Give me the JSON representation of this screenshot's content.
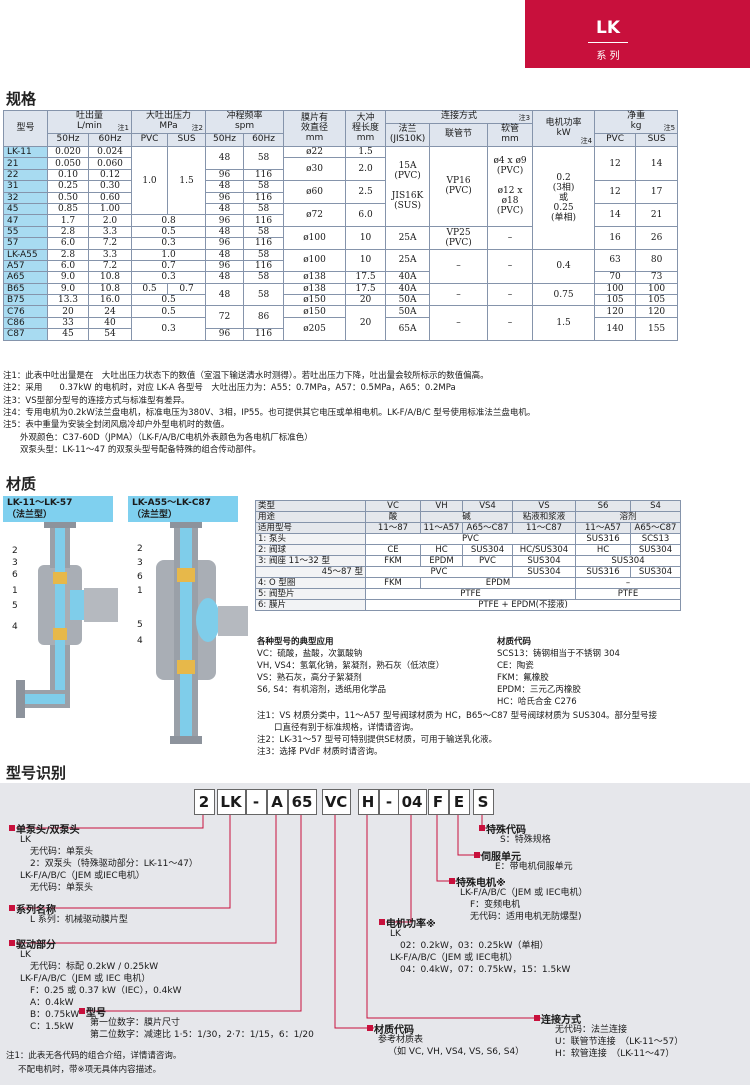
{
  "header": {
    "series_code": "LK",
    "series_label": "系 列"
  },
  "spec": {
    "title": "规格",
    "columns": [
      {
        "label": "型号"
      },
      {
        "label": "吐出量",
        "unit": "L/min",
        "note": "注1"
      },
      {
        "label": "大吐出压力",
        "unit": "MPa",
        "note": "注2"
      },
      {
        "label": "冲程频率",
        "unit": "spm"
      },
      {
        "label": "膜片有\n效直径",
        "unit": "mm"
      },
      {
        "label": "大冲\n程长度",
        "unit": "mm"
      },
      {
        "label": "连接方式",
        "note": "注3"
      },
      {
        "label": "电机功率",
        "unit": "kW",
        "note": "注4"
      },
      {
        "label": "净重",
        "unit": "kg",
        "note": "注5"
      }
    ],
    "connection_sub": [
      {
        "label": "法兰\n(JIS10K)"
      },
      {
        "label": "联管节"
      },
      {
        "label": "软管",
        "unit": "mm"
      }
    ],
    "sub_headers": [
      "50Hz",
      "60Hz",
      "PVC",
      "SUS",
      "50Hz",
      "60Hz",
      "PVC",
      "SUS"
    ],
    "rows": [
      [
        "LK-11",
        "0.020",
        "0.024",
        "1.0",
        "1.5",
        "48",
        "58",
        "ø22",
        "1.5",
        "15A\n(PVC)\n\nJIS16K\n(SUS)",
        "VP16\n(PVC)",
        "ø4 x ø9\n(PVC)\n\nø12 x ø18\n(PVC)",
        "0.2\n(3相)\n或\n0.25\n(单相)",
        "12",
        "14"
      ],
      [
        "21",
        "0.050",
        "0.060",
        null,
        null,
        null,
        null,
        "ø30",
        "2.0",
        null,
        null,
        null,
        null,
        null,
        null
      ],
      [
        "22",
        "0.10",
        "0.12",
        null,
        null,
        "96",
        "116",
        null,
        null,
        null,
        null,
        null,
        null,
        null,
        null
      ],
      [
        "31",
        "0.25",
        "0.30",
        null,
        null,
        "48",
        "58",
        "ø60",
        "2.5",
        null,
        null,
        null,
        null,
        "12",
        "17"
      ],
      [
        "32",
        "0.50",
        "0.60",
        null,
        null,
        "96",
        "116",
        null,
        null,
        null,
        null,
        null,
        null,
        null,
        null
      ],
      [
        "45",
        "0.85",
        "1.00",
        null,
        null,
        "48",
        "58",
        "ø72",
        "6.0",
        null,
        null,
        null,
        null,
        "14",
        "21"
      ],
      [
        "47",
        "1.7",
        "2.0",
        "0.8",
        null,
        "96",
        "116",
        null,
        null,
        null,
        null,
        null,
        null,
        null,
        null
      ],
      [
        "55",
        "2.8",
        "3.3",
        "0.5",
        null,
        "48",
        "58",
        "ø100",
        "10",
        "25A",
        "VP25\n(PVC)",
        "–",
        null,
        "16",
        "26"
      ],
      [
        "57",
        "6.0",
        "7.2",
        "0.3",
        null,
        "96",
        "116",
        null,
        null,
        null,
        null,
        null,
        null,
        null,
        null
      ],
      [
        "LK-A55",
        "2.8",
        "3.3",
        "1.0",
        null,
        "48",
        "58",
        "ø100",
        "10",
        "25A",
        "–",
        "–",
        "0.4",
        "63",
        "80"
      ],
      [
        "A57",
        "6.0",
        "7.2",
        "0.7",
        null,
        "96",
        "116",
        null,
        null,
        null,
        null,
        null,
        null,
        null,
        null
      ],
      [
        "A65",
        "9.0",
        "10.8",
        "0.3",
        null,
        "48",
        "58",
        "ø138",
        "17.5",
        "40A",
        null,
        null,
        null,
        "70",
        "73"
      ],
      [
        "B65",
        "9.0",
        "10.8",
        "0.5",
        "0.7",
        "48",
        "58",
        "ø138",
        "17.5",
        "40A",
        "–",
        "–",
        "0.75",
        "100",
        "100"
      ],
      [
        "B75",
        "13.3",
        "16.0",
        "0.5",
        null,
        null,
        null,
        "ø150",
        "20",
        "50A",
        null,
        null,
        null,
        "105",
        "105"
      ],
      [
        "C76",
        "20",
        "24",
        "0.5",
        null,
        "72",
        "86",
        "ø150",
        "20",
        "50A",
        "–",
        "–",
        "1.5",
        "120",
        "120"
      ],
      [
        "C86",
        "33",
        "40",
        "0.3",
        null,
        null,
        null,
        "ø205",
        null,
        "65A",
        null,
        null,
        null,
        "140",
        "155"
      ],
      [
        "C87",
        "45",
        "54",
        null,
        null,
        "96",
        "116",
        null,
        null,
        null,
        null,
        null,
        null,
        null,
        null
      ]
    ],
    "notes": [
      "注1：此表中吐出量是在　大吐出压力状态下的数值（室温下输送清水时测得）。若吐出压力下降，吐出量会较所标示的数值偏高。",
      "注2：采用　　0.37kW 的电机时，对应 LK-A 各型号　大吐出压力为：A55：0.7MPa，A57：0.5MPa，A65：0.2MPa",
      "注3：VS型部分型号的连接方式与标准型有差异。",
      "注4：专用电机为0.2kW法兰盘电机，标准电压为380V、3相，IP55。也可提供其它电压或单相电机。LK-F/A/B/C 型号使用标准法兰盘电机。",
      "注5：表中重量为安装全封闭风扇冷却户外型电机时的数值。",
      "　　外观颜色：C37-60D（JPMA）（LK-F/A/B/C电机外表颜色为各电机厂标准色）",
      "　　双泵头型：LK-11～47 的双泵头型号配备特殊的组合传动部件。"
    ]
  },
  "material": {
    "title": "材质",
    "diagrams": [
      {
        "label": "LK-11～LK-57\n（法兰型）",
        "callouts": [
          "2",
          "3",
          "6",
          "1",
          "5",
          "4"
        ]
      },
      {
        "label": "LK-A55～LK-C87\n（法兰型）",
        "callouts": [
          "2",
          "3",
          "6",
          "1",
          "5",
          "4"
        ]
      }
    ],
    "table": [
      {
        "label": "类型",
        "cells": [
          "VC",
          "VH",
          "VS4",
          "VS",
          "S6",
          "S4"
        ]
      },
      {
        "label": "用途",
        "cells": [
          "酸",
          "碱",
          "粘液和浆液",
          "溶剂"
        ]
      },
      {
        "label": "适用型号",
        "cells": [
          "11～87",
          "11～A57",
          "A65～C87",
          "11～C87",
          "11～A57",
          "A65～C87"
        ]
      },
      {
        "label": "1: 泵头",
        "cells": [
          "PVC",
          "SUS316",
          "SCS13"
        ]
      },
      {
        "label": "2: 阀球",
        "cells": [
          "CE",
          "HC",
          "SUS304",
          "HC/SUS304",
          "HC",
          "SUS304"
        ]
      },
      {
        "label": "3: 阀座 11～32 型",
        "cells": [
          "FKM",
          "EPDM",
          "PVC",
          "SUS304",
          "SUS304"
        ]
      },
      {
        "label": "45～87 型",
        "cells": [
          "PVC",
          "SUS304",
          "SUS316",
          "SUS304"
        ]
      },
      {
        "label": "4: O 型圈",
        "cells": [
          "FKM",
          "EPDM",
          "–"
        ]
      },
      {
        "label": "5: 阀垫片",
        "cells": [
          "PTFE",
          "PTFE"
        ]
      },
      {
        "label": "6: 膜片",
        "cells": [
          "PTFE + EPDM(不接液)"
        ]
      }
    ],
    "applications": {
      "title": "各种型号的典型应用",
      "lines": [
        "VC：硫酸，盐酸，次氯酸钠",
        "VH, VS4：氢氧化钠，絮凝剂，熟石灰（低浓度）",
        "VS：熟石灰，高分子絮凝剂",
        "S6, S4：有机溶剂，透纸用化学品"
      ]
    },
    "codes": {
      "title": "材质代码",
      "lines": [
        "SCS13：铸钢相当于不锈钢 304",
        "CE：陶瓷",
        "FKM：氟橡胶",
        "EPDM：三元乙丙橡胶",
        "HC：哈氏合金 C276"
      ]
    },
    "notes": [
      "注1：VS 材质分类中，11～A57 型号阀球材质为 HC，B65～C87 型号阀球材质为 SUS304。部分型号接",
      "　　口直径有别于标准规格，详情请咨询。",
      "注2：LK-31～57 型号可特别提供SE材质，可用于输送乳化液。",
      "注3：选择 PVdF 材质时请咨询。"
    ]
  },
  "model_code": {
    "title": "型号识别",
    "code": [
      "2",
      "LK",
      "-",
      "A",
      "65",
      "VC",
      "H",
      "-",
      "04",
      "F",
      "E",
      "S"
    ],
    "fields": [
      {
        "heading": "单泵头/双泵头",
        "lines": [
          "LK",
          "无代码：单泵头",
          "2：双泵头（特殊驱动部分：LK-11～47）",
          "LK-F/A/B/C（JEM 或IEC电机）",
          "无代码：单泵头"
        ]
      },
      {
        "heading": "系列名称",
        "lines": [
          "L 系列：机械驱动膜片型"
        ]
      },
      {
        "heading": "驱动部分",
        "lines": [
          "LK",
          "无代码：标配 0.2kW / 0.25kW",
          "LK-F/A/B/C（JEM 或 IEC 电机）",
          "F：0.25 或 0.37 kW（IEC），0.4kW",
          "A：0.4kW",
          "B：0.75kW",
          "C：1.5kW"
        ]
      },
      {
        "heading": "型号",
        "lines": [
          "第一位数字：膜片尺寸",
          "第二位数字：减速比 1·5：1/30，2·7：1/15，6：1/20"
        ]
      },
      {
        "heading": "材质代码",
        "lines": [
          "参考材质表",
          "（如 VC, VH, VS4, VS, S6, S4）"
        ]
      },
      {
        "heading": "连接方式",
        "lines": [
          "无代码：法兰连接",
          "U：联管节连接　（LK-11～57）",
          "H：软管连接　（LK-11～47）"
        ]
      },
      {
        "heading": "电机功率※",
        "lines": [
          "LK",
          "02：0.2kW，03：0.25kW（单相）",
          "LK-F/A/B/C（JEM 或 IEC电机）",
          "04：0.4kW，07：0.75kW，15：1.5kW"
        ]
      },
      {
        "heading": "特殊电机※",
        "lines": [
          "LK-F/A/B/C（JEM 或 IEC电机）",
          "F：变频电机",
          "无代码：适用电机无防爆型)"
        ]
      },
      {
        "heading": "伺服单元",
        "lines": [
          "E：带电机伺服单元"
        ]
      },
      {
        "heading": "特殊代码",
        "lines": [
          "S：特殊规格"
        ]
      }
    ],
    "notes": [
      "注1：此表无各代码的组合介绍，详情请咨询。",
      "不配电机时，带※项无具体内容描述。"
    ]
  }
}
